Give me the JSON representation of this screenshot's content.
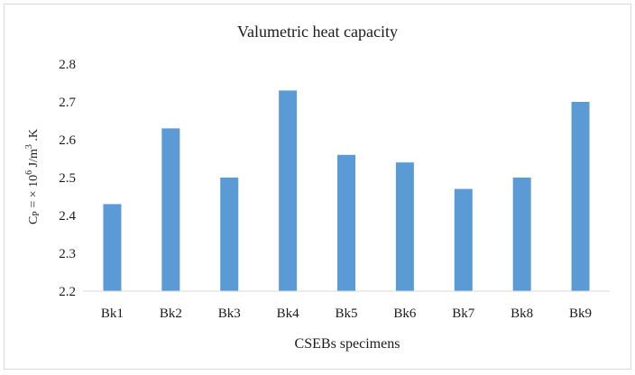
{
  "chart_data": {
    "type": "bar",
    "title": "Valumetric  heat capacity",
    "xlabel": "CSEBs specimens",
    "ylabel": {
      "prefix": "C",
      "subscript": "P",
      "middle": " = × 10",
      "sup1": "6",
      "unit": " J/m",
      "sup2": "3",
      "tail": " .K"
    },
    "categories": [
      "Bk1",
      "Bk2",
      "Bk3",
      "Bk4",
      "Bk5",
      "Bk6",
      "Bk7",
      "Bk8",
      "Bk9"
    ],
    "values": [
      2.43,
      2.63,
      2.5,
      2.73,
      2.56,
      2.54,
      2.47,
      2.5,
      2.7
    ],
    "ylim": [
      2.2,
      2.8
    ],
    "yticks": [
      "2.2",
      "2.3",
      "2.4",
      "2.5",
      "2.6",
      "2.7",
      "2.8"
    ],
    "grid": false,
    "legend": "none",
    "bar_color": "#5b9bd5",
    "axis_color": "#d9d9d9"
  }
}
